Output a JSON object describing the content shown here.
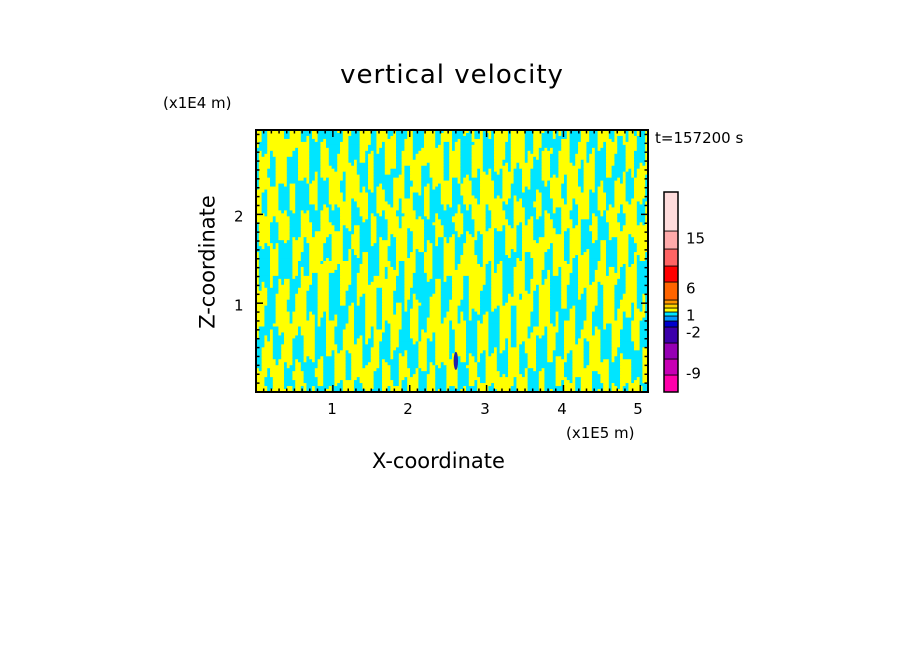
{
  "chart_data": {
    "type": "heatmap",
    "title": "vertical velocity",
    "xlabel": "X-coordinate",
    "ylabel": "Z-coordinate",
    "x_unit": "(x1E5 m)",
    "y_unit": "(x1E4 m)",
    "time_label": "t=157200 s",
    "xlim": [
      0,
      5.1
    ],
    "ylim": [
      0,
      2.95
    ],
    "x_ticks": [
      "1",
      "2",
      "3",
      "4",
      "5"
    ],
    "y_ticks": [
      "1",
      "2"
    ],
    "dominant_levels": [
      "-2 to 0",
      "0 to 1"
    ],
    "colors": {
      "positive": "#ffff00",
      "negative": "#00e5ff",
      "strong_negative": "#2222aa"
    },
    "colorbar": {
      "labels": [
        "15",
        "6",
        "1",
        "-2",
        "-9"
      ],
      "colors": [
        "#ff00aa",
        "#c800b4",
        "#9600b4",
        "#3c00aa",
        "#0000cd",
        "#0096ff",
        "#00e5ff",
        "#ffff00",
        "#ffd200",
        "#ff9600",
        "#ff6400",
        "#ff0000",
        "#ff6464",
        "#ffaaaa",
        "#ffdcdc"
      ]
    }
  }
}
